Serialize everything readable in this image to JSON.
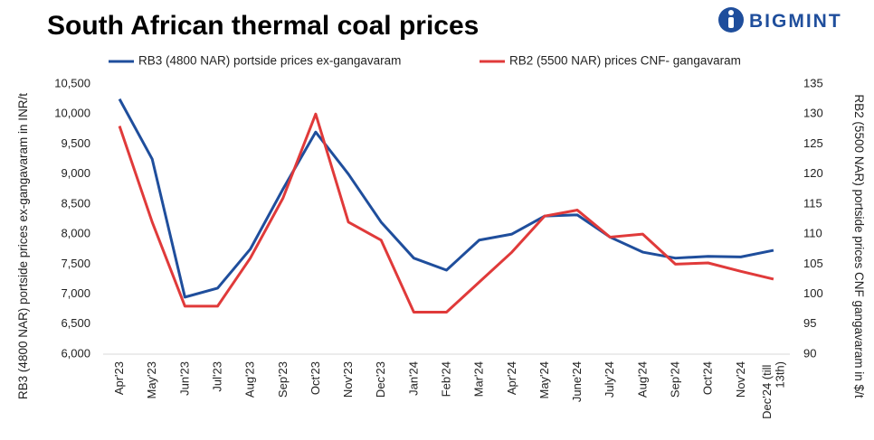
{
  "chart_data": {
    "type": "line",
    "title": "South African thermal coal prices",
    "brand": "BIGMINT",
    "y_label": "RB3 (4800 NAR) portside prices ex-gangavaram in INR/t",
    "y2_label": "RB2 (5500 NAR) portside prices CNF gangavaram in $/t",
    "categories": [
      "Apr'23",
      "May'23",
      "Jun'23",
      "Jul'23",
      "Aug'23",
      "Sep'23",
      "Oct'23",
      "Nov'23",
      "Dec'23",
      "Jan'24",
      "Feb'24",
      "Mar'24",
      "Apr'24",
      "May'24",
      "June'24",
      "July'24",
      "Aug'24",
      "Sep'24",
      "Oct'24",
      "Nov'24",
      "Dec'24 (till 13th)"
    ],
    "series": [
      {
        "name": "RB3 (4800 NAR) portside prices ex-gangavaram",
        "color": "#1f4e9c",
        "values": [
          10250,
          9250,
          6950,
          7100,
          7750,
          8750,
          9700,
          9000,
          8200,
          7600,
          7400,
          7900,
          8000,
          8300,
          8320,
          7950,
          7700,
          7600,
          7630,
          7620,
          7730
        ]
      },
      {
        "name": "RB2 (5500 NAR) prices CNF- gangavaram",
        "color": "#e03a3a",
        "axis": "y2",
        "values": [
          128,
          112,
          98,
          98,
          106,
          116,
          130,
          112,
          109,
          97,
          97,
          102,
          107,
          113,
          114,
          109.5,
          110,
          105,
          105.2,
          103.8,
          102.5
        ]
      }
    ],
    "ylim": [
      6000,
      10500
    ],
    "yticks": [
      {
        "value": 6000,
        "label": "6,000"
      },
      {
        "value": 6500,
        "label": "6,500"
      },
      {
        "value": 7000,
        "label": "7,000"
      },
      {
        "value": 7500,
        "label": "7,500"
      },
      {
        "value": 8000,
        "label": "8,000"
      },
      {
        "value": 8500,
        "label": "8,500"
      },
      {
        "value": 9000,
        "label": "9,000"
      },
      {
        "value": 9500,
        "label": "9,500"
      },
      {
        "value": 10000,
        "label": "10,000"
      },
      {
        "value": 10500,
        "label": "10,500"
      }
    ],
    "y2lim": [
      90,
      135
    ],
    "y2ticks": [
      90,
      95,
      100,
      105,
      110,
      115,
      120,
      125,
      130,
      135
    ],
    "grid": false
  }
}
